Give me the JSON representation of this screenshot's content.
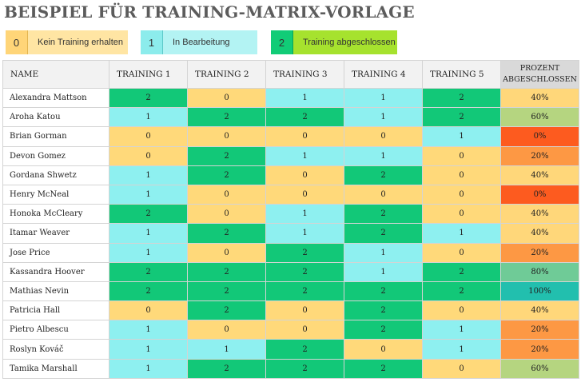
{
  "title": "BEISPIEL FÜR TRAINING-MATRIX-VORLAGE",
  "legend": [
    {
      "value": "0",
      "label": "Kein Training erhalten"
    },
    {
      "value": "1",
      "label": "In Bearbeitung"
    },
    {
      "value": "2",
      "label": "Training abgeschlossen"
    }
  ],
  "colors": {
    "status_0": "#ffd97a",
    "status_1": "#8ef0f0",
    "status_2": "#12c878",
    "pct_0": "#fd5b1f",
    "pct_20": "#fd9844",
    "pct_40": "#ffd77a",
    "pct_60": "#b5d580",
    "pct_80": "#6fcb97",
    "pct_100": "#22bfae"
  },
  "table": {
    "headers": {
      "name": "NAME",
      "t1": "TRAINING 1",
      "t2": "TRAINING 2",
      "t3": "TRAINING 3",
      "t4": "TRAINING 4",
      "t5": "TRAINING 5",
      "pct": "PROZENT ABGESCHLOSSEN"
    },
    "rows": [
      {
        "name": "Alexandra Mattson",
        "scores": [
          2,
          0,
          1,
          1,
          2
        ],
        "pct": "40%",
        "pct_value": 40
      },
      {
        "name": "Aroha Katou",
        "scores": [
          1,
          2,
          2,
          1,
          2
        ],
        "pct": "60%",
        "pct_value": 60
      },
      {
        "name": "Brian Gorman",
        "scores": [
          0,
          0,
          0,
          0,
          1
        ],
        "pct": "0%",
        "pct_value": 0
      },
      {
        "name": "Devon Gomez",
        "scores": [
          0,
          2,
          1,
          1,
          0
        ],
        "pct": "20%",
        "pct_value": 20
      },
      {
        "name": "Gordana Shwetz",
        "scores": [
          1,
          2,
          0,
          2,
          0
        ],
        "pct": "40%",
        "pct_value": 40
      },
      {
        "name": "Henry McNeal",
        "scores": [
          1,
          0,
          0,
          0,
          0
        ],
        "pct": "0%",
        "pct_value": 0
      },
      {
        "name": "Honoka McCleary",
        "scores": [
          2,
          0,
          1,
          2,
          0
        ],
        "pct": "40%",
        "pct_value": 40
      },
      {
        "name": "Itamar Weaver",
        "scores": [
          1,
          2,
          1,
          2,
          1
        ],
        "pct": "40%",
        "pct_value": 40
      },
      {
        "name": "Jose Price",
        "scores": [
          1,
          0,
          2,
          1,
          0
        ],
        "pct": "20%",
        "pct_value": 20
      },
      {
        "name": "Kassandra Hoover",
        "scores": [
          2,
          2,
          2,
          1,
          2
        ],
        "pct": "80%",
        "pct_value": 80
      },
      {
        "name": "Mathias Nevin",
        "scores": [
          2,
          2,
          2,
          2,
          2
        ],
        "pct": "100%",
        "pct_value": 100
      },
      {
        "name": "Patricia Hall",
        "scores": [
          0,
          2,
          0,
          2,
          0
        ],
        "pct": "40%",
        "pct_value": 40
      },
      {
        "name": "Pietro Albescu",
        "scores": [
          1,
          0,
          0,
          2,
          1
        ],
        "pct": "20%",
        "pct_value": 20
      },
      {
        "name": "Roslyn Kováč",
        "scores": [
          1,
          1,
          2,
          0,
          1
        ],
        "pct": "20%",
        "pct_value": 20
      },
      {
        "name": "Tamika Marshall",
        "scores": [
          1,
          2,
          2,
          2,
          0
        ],
        "pct": "60%",
        "pct_value": 60
      }
    ]
  }
}
